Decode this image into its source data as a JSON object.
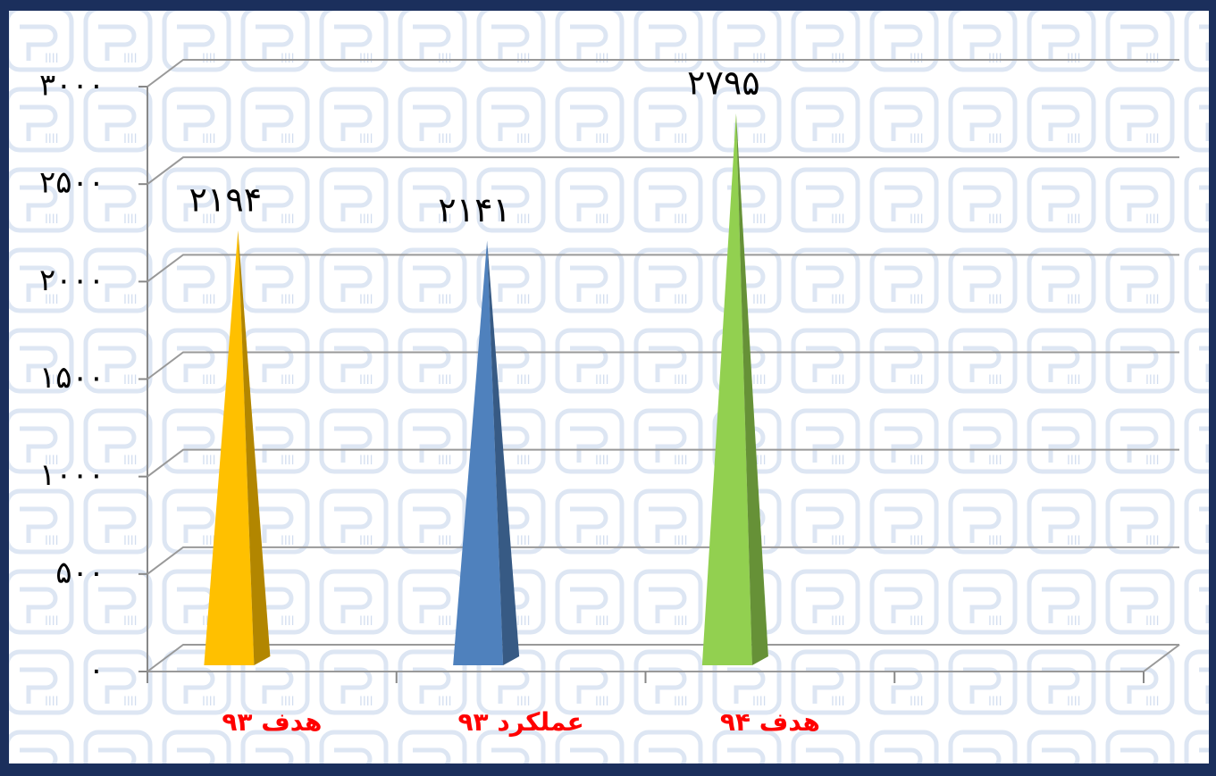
{
  "chart_data": {
    "type": "pyramid",
    "categories": [
      "هدف ۹۳",
      "عملکرد ۹۳",
      "هدف ۹۴",
      null
    ],
    "values": [
      2194,
      2141,
      2795,
      null
    ],
    "value_labels": [
      "۲۱۹۴",
      "۲۱۴۱",
      "۲۷۹۵",
      null
    ],
    "colors": [
      "#ffc000",
      "#4f81bd",
      "#92d050"
    ],
    "ylim": [
      0,
      3000
    ],
    "yticks": [
      {
        "value": 0,
        "label": "۰"
      },
      {
        "value": 500,
        "label": "۵۰۰"
      },
      {
        "value": 1000,
        "label": "۱۰۰۰"
      },
      {
        "value": 1500,
        "label": "۱۵۰۰"
      },
      {
        "value": 2000,
        "label": "۲۰۰۰"
      },
      {
        "value": 2500,
        "label": "۲۵۰۰"
      },
      {
        "value": 3000,
        "label": "۳۰۰۰"
      }
    ],
    "grid": true
  }
}
